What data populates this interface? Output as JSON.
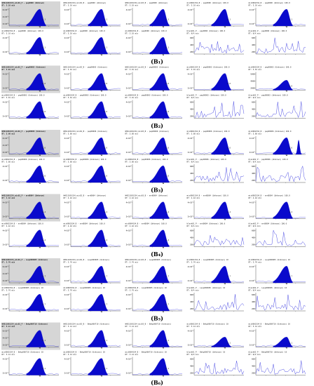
{
  "figure": {
    "groups": [
      {
        "caption": "(B₁)",
        "row1": [
          {
            "l1": "WHS11001334_mis01_P - pep0000 (Unknown)",
            "l2": "RT: 5.10 min",
            "yt": [
              "6×10⁵",
              "4×10⁵",
              "2×10⁵"
            ],
            "peak": "5.1",
            "kind": "peak",
            "gray": true
          },
          {
            "l1": "WHS11001334_mix02_B - pep0000 (Unknown)",
            "l2": "RT: 5.10 min",
            "yt": [
              "4×10⁵",
              "2×10⁵"
            ],
            "peak": "5.1",
            "kind": "peak"
          },
          {
            "l1": "WHS11001334_mix03_B - pep0000 (Unknown)",
            "l2": "RT: 5.10 min",
            "yt": [
              "4×10⁵",
              "2×10⁵"
            ],
            "peak": "5.1",
            "kind": "peak"
          },
          {
            "l1": "mix0001334_B - pep0000 (Unknown) 100.0",
            "l2": "RT: 5.10 min",
            "yt": [
              "4×10⁵",
              "2×10⁵"
            ],
            "peak": "5.1",
            "kind": "peak"
          },
          {
            "l1": "mix0002334_B - pep0000 (Unknown) 100.0",
            "l2": "RT: 5.10 min",
            "yt": [
              "4×10⁵",
              "2×10⁵"
            ],
            "peak": "5.1",
            "kind": "peak"
          }
        ],
        "row2": [
          {
            "l1": "mix0002334_B - pep0000 (Unknown) 100.0",
            "l2": "RT: 5.10 min",
            "yt": [
              "4×10⁵",
              "2×10⁵"
            ],
            "peak": "5.1",
            "kind": "peak"
          },
          {
            "l1": "mix0003334_B - pep0000 (Unknown) 100.0",
            "l2": "RT: 5.10 min",
            "yt": [
              "4×10⁵",
              "2×10⁵"
            ],
            "peak": "5.1",
            "kind": "peak"
          },
          {
            "l1": "mix0004334_B - pep0000 (Unknown) 100.0",
            "l2": "RT: 5.10 min",
            "yt": [
              "4×10⁵",
              "2×10⁵"
            ],
            "peak": "5.1",
            "kind": "peak"
          },
          {
            "l1": "blank01_P - pep0000 (Unknown) 100.0",
            "l2": "RT: N/A min",
            "yt": [
              "600",
              "400",
              "200"
            ],
            "peak": "",
            "kind": "noise"
          },
          {
            "l1": "blank02_P - pep0000 (Unknown) 100.0",
            "l2": "RT: N/A min",
            "yt": [
              "600",
              "400",
              "200"
            ],
            "peak": "",
            "kind": "noise"
          }
        ]
      },
      {
        "caption": "(B₂)",
        "row1": [
          {
            "l1": "WHS11001334_mis01_P - pep00003 (Unknown)",
            "l2": "RT: 5.01 min",
            "yt": [
              "4×10⁵",
              "2×10⁵"
            ],
            "peak": "5.0",
            "kind": "peak",
            "gray": true
          },
          {
            "l1": "WHS11001334_mix02_B - pep00003 (Unknown)",
            "l2": "RT: 5.01 min",
            "yt": [
              "4×10⁵",
              "2×10⁵"
            ],
            "peak": "5.0",
            "kind": "peak"
          },
          {
            "l1": "WHS11001334_mix03_B - pep00003 (Unknown)",
            "l2": "RT: 5.01 min",
            "yt": [
              "4×10⁵",
              "2×10⁵"
            ],
            "peak": "5.0",
            "kind": "peak"
          },
          {
            "l1": "mix0001334_B - pep00003 (Unknown) 100.0",
            "l2": "RT: 5.01 min",
            "yt": [
              "4×10⁵",
              "2×10⁵"
            ],
            "peak": "5.0",
            "kind": "peak"
          },
          {
            "l1": "mix0002334_B - pep00003 (Unknown) 100.0",
            "l2": "RT: 5.01 min",
            "yt": [
              "5000",
              "4000",
              "2000"
            ],
            "peak": "5.0",
            "kind": "bump"
          }
        ],
        "row2": [
          {
            "l1": "mix0002334_B - pep00003 (Unknown) 100.0",
            "l2": "RT: 5.01 min",
            "yt": [
              "4×10⁵",
              "2×10⁵"
            ],
            "peak": "5.0",
            "kind": "peak"
          },
          {
            "l1": "mix0003334_B - pep00003 (Unknown) 100.0",
            "l2": "RT: 5.01 min",
            "yt": [
              "4×10⁵",
              "2×10⁵"
            ],
            "peak": "5.0",
            "kind": "peak"
          },
          {
            "l1": "mix0004334_B - pep00003 (Unknown) 100.0",
            "l2": "RT: 5.01 min",
            "yt": [
              "4×10⁵",
              "2×10⁵"
            ],
            "peak": "5.0",
            "kind": "peak"
          },
          {
            "l1": "blank01_P - pep00003 (Unknown) 100.0",
            "l2": "RT: N/A min",
            "yt": [
              "600",
              "400",
              "200"
            ],
            "peak": "",
            "kind": "noise"
          },
          {
            "l1": "blank02_P - pep00003 (Unknown) 100.0",
            "l2": "RT: N/A min",
            "yt": [
              "600",
              "400",
              "200"
            ],
            "peak": "",
            "kind": "noise"
          }
        ]
      },
      {
        "caption": "(B₃)",
        "row1": [
          {
            "l1": "WHS11001334_mis01_P - pep00006 (Unknown)",
            "l2": "RT: 5.60 min",
            "yt": [
              "6×10⁵",
              "4×10⁵",
              "2×10⁵"
            ],
            "peak": "5.6",
            "kind": "peak",
            "gray": true
          },
          {
            "l1": "WHS11001334_mix02_B - pep00006 (Unknown)",
            "l2": "RT: 5.60 min",
            "yt": [
              "4×10⁵",
              "2×10⁵"
            ],
            "peak": "5.6",
            "kind": "peak"
          },
          {
            "l1": "WHS11001334_mix03_B - pep00006 (Unknown)",
            "l2": "RT: 5.60 min",
            "yt": [
              "4×10⁵",
              "2×10⁵"
            ],
            "peak": "5.6",
            "kind": "peak"
          },
          {
            "l1": "mix0001334_B - pep00006 (Unknown) 100.0",
            "l2": "RT: 5.60 min",
            "yt": [
              "4×10⁵",
              "2×10⁵"
            ],
            "peak": "5.6",
            "kind": "peak"
          },
          {
            "l1": "mix0002334_B - pep00006 (Unknown) 100.0",
            "l2": "RT: 5.60 min",
            "yt": [
              "4×10⁵",
              "2×10⁵"
            ],
            "peak": "5.6",
            "kind": "double"
          }
        ],
        "row2": [
          {
            "l1": "mix0002334_B - pep00006 (Unknown) 100.0",
            "l2": "RT: 5.60 min",
            "yt": [
              "4×10⁵",
              "2×10⁵"
            ],
            "peak": "5.6",
            "kind": "peak"
          },
          {
            "l1": "mix0003334_B - pep00006 (Unknown) 100.0",
            "l2": "RT: 5.60 min",
            "yt": [
              "4×10⁵",
              "2×10⁵"
            ],
            "peak": "5.6",
            "kind": "peak"
          },
          {
            "l1": "mix0004334_B - pep00006 (Unknown) 100.0",
            "l2": "RT: 5.60 min",
            "yt": [
              "4×10⁵",
              "2×10⁵"
            ],
            "peak": "5.6",
            "kind": "peak"
          },
          {
            "l1": "blank01_P - pep00006 (Unknown) 100.0",
            "l2": "RT: N/A min",
            "yt": [
              "600",
              "400",
              "200"
            ],
            "peak": "",
            "kind": "noise"
          },
          {
            "l1": "blank02_P - pep00006 (Unknown) 100.0",
            "l2": "RT: N/A min",
            "yt": [
              "600",
              "400",
              "200"
            ],
            "peak": "",
            "kind": "noise"
          }
        ]
      },
      {
        "caption": "(B₄)",
        "row1": [
          {
            "l1": "WHS11001334_mis01_P - mrd0004 (Unknown)",
            "l2": "RT: 4.42 min",
            "yt": [
              "4×10⁵",
              "2×10⁵"
            ],
            "peak": "4.4",
            "kind": "peak",
            "gray": true
          },
          {
            "l1": "WHS11001334_mix02_B - mrd0004 (Unknown)",
            "l2": "RT: 4.42 min",
            "yt": [
              "4×10⁵",
              "2×10⁵"
            ],
            "peak": "4.4",
            "kind": "peak"
          },
          {
            "l1": "WHS11001334_mix03_B - mrd0004 (Unknown)",
            "l2": "RT: 4.42 min",
            "yt": [
              "4×10⁵",
              "2×10⁵"
            ],
            "peak": "4.4",
            "kind": "peak"
          },
          {
            "l1": "mix0001334_B - mrd0004 (Unknown) 100.0",
            "l2": "RT: 4.42 min",
            "yt": [
              "4×10⁵",
              "2×10⁵"
            ],
            "peak": "4.4",
            "kind": "peak"
          },
          {
            "l1": "mix0002334_B - mrd0004 (Unknown) 100.0",
            "l2": "RT: 4.42 min",
            "yt": [
              "4×10⁵",
              "2×10⁵"
            ],
            "peak": "4.4",
            "kind": "peak"
          }
        ],
        "row2": [
          {
            "l1": "mix0002334_B - mrd0004 (Unknown) 100.0",
            "l2": "RT: 4.42 min",
            "yt": [
              "4×10⁵",
              "2×10⁵"
            ],
            "peak": "4.4",
            "kind": "peak"
          },
          {
            "l1": "mix0003334_B - mrd0004 (Unknown) 100.0",
            "l2": "RT: 4.42 min",
            "yt": [
              "4×10⁵",
              "2×10⁵"
            ],
            "peak": "4.4",
            "kind": "peak"
          },
          {
            "l1": "mix0004334_B - mrd0004 (Unknown) 100.0",
            "l2": "RT: 4.42 min",
            "yt": [
              "4×10⁵",
              "2×10⁵"
            ],
            "peak": "4.4",
            "kind": "peak"
          },
          {
            "l1": "blank01_P - mrd0004 (Unknown) 100.0",
            "l2": "RT: N/A min",
            "yt": [
              "600",
              "400",
              "200"
            ],
            "peak": "",
            "kind": "noise"
          },
          {
            "l1": "blank02_P - mrd0004 (Unknown) 100.0",
            "l2": "RT: N/A min",
            "yt": [
              "600",
              "400",
              "200"
            ],
            "peak": "",
            "kind": "noise"
          }
        ]
      },
      {
        "caption": "(B₅)",
        "row1": [
          {
            "l1": "WHS11001334_mis01_P - Leup000005 (Unknown)",
            "l2": "RT: 5.70 min",
            "yt": [
              "6×10⁵",
              "4×10⁵",
              "2×10⁵"
            ],
            "peak": "5.7",
            "kind": "peak",
            "gray": true
          },
          {
            "l1": "WHS11001334_mix02_B - Leup000005 (Unknown)",
            "l2": "RT: 5.70 min",
            "yt": [
              "4×10⁵",
              "2×10⁵"
            ],
            "peak": "5.7",
            "kind": "peak"
          },
          {
            "l1": "WHS11001334_mix03_B - Leup000005 (Unknown)",
            "l2": "RT: 5.70 min",
            "yt": [
              "4×10⁵",
              "2×10⁵"
            ],
            "peak": "5.7",
            "kind": "peak"
          },
          {
            "l1": "mix0001334_B - Leup000005 (Unknown) 10",
            "l2": "RT: 5.70 min",
            "yt": [
              "4×10⁵",
              "2×10⁵"
            ],
            "peak": "5.7",
            "kind": "peak"
          },
          {
            "l1": "mix0002334_B - Leup000005 (Unknown) 10",
            "l2": "RT: 5.70 min",
            "yt": [
              "4×10⁵",
              "2×10⁵"
            ],
            "peak": "5.7",
            "kind": "peak"
          }
        ],
        "row2": [
          {
            "l1": "mix0002334_B - Leup000005 (Unknown) 10",
            "l2": "RT: 5.70 min",
            "yt": [
              "4×10⁵",
              "2×10⁵"
            ],
            "peak": "5.7",
            "kind": "peak"
          },
          {
            "l1": "mix0003334_B - Leup000005 (Unknown) 10",
            "l2": "RT: 5.70 min",
            "yt": [
              "4×10⁵",
              "2×10⁵"
            ],
            "peak": "5.7",
            "kind": "peak"
          },
          {
            "l1": "mix0004334_B - Leup000005 (Unknown) 10",
            "l2": "RT: 5.70 min",
            "yt": [
              "4×10⁵",
              "2×10⁵"
            ],
            "peak": "5.7",
            "kind": "peak"
          },
          {
            "l1": "blank01_P - Leup000005 (Unknown) 10",
            "l2": "RT: N/A min",
            "yt": [
              "600",
              "400",
              "200"
            ],
            "peak": "",
            "kind": "noise"
          },
          {
            "l1": "blank02_P - Leup000005 (Unknown) 10",
            "l2": "RT: N/A min",
            "yt": [
              "600",
              "400",
              "200"
            ],
            "peak": "",
            "kind": "noise"
          }
        ]
      },
      {
        "caption": "(B₆)",
        "row1": [
          {
            "l1": "WHS11001334_mis01_P - Bekp000710 (Unknown)",
            "l2": "RT: 5.14 min",
            "yt": [
              "6×10⁵",
              "4×10⁵",
              "2×10⁵"
            ],
            "peak": "5.1",
            "kind": "peak",
            "gray": true
          },
          {
            "l1": "WHS11001334_mix02_B - Bekp000710 (Unknown)",
            "l2": "RT: 5.14 min",
            "yt": [
              "4×10⁵",
              "2×10⁵"
            ],
            "peak": "5.1",
            "kind": "peak"
          },
          {
            "l1": "WHS11001334_mix03_B - Bekp000710 (Unknown)",
            "l2": "RT: 5.14 min",
            "yt": [
              "4×10⁵",
              "2×10⁵"
            ],
            "peak": "5.1",
            "kind": "peak"
          },
          {
            "l1": "mix0001334_B - Bekp000710 (Unknown) 10",
            "l2": "RT: 5.14 min",
            "yt": [
              "4×10⁵",
              "2×10⁵"
            ],
            "peak": "5.1",
            "kind": "bump"
          },
          {
            "l1": "mix0002334_B - Bekp000710 (Unknown) 10",
            "l2": "RT: 5.14 min",
            "yt": [
              "4×10⁵",
              "2×10⁵"
            ],
            "peak": "5.1",
            "kind": "bump"
          }
        ],
        "row2": [
          {
            "l1": "mix0002334_B - Bekp000710 (Unknown) 10",
            "l2": "RT: 5.14 min",
            "yt": [
              "4×10⁵",
              "2×10⁵"
            ],
            "peak": "5.1",
            "kind": "peak"
          },
          {
            "l1": "mix0003334_B - Bekp000710 (Unknown) 10",
            "l2": "RT: 5.14 min",
            "yt": [
              "4×10⁵",
              "2×10⁵"
            ],
            "peak": "5.1",
            "kind": "peak"
          },
          {
            "l1": "mix0004334_B - Bekp000710 (Unknown) 10",
            "l2": "RT: 5.14 min",
            "yt": [
              "4×10⁵",
              "2×10⁵"
            ],
            "peak": "5.1",
            "kind": "peak"
          },
          {
            "l1": "blank01_P - Bekp000710 (Unknown) 10",
            "l2": "RT: N/A min",
            "yt": [
              "600",
              "400",
              "200"
            ],
            "peak": "",
            "kind": "noise"
          },
          {
            "l1": "blank02_P - Bekp000710 (Unknown) 10",
            "l2": "RT: N/A min",
            "yt": [
              "600",
              "400",
              "200"
            ],
            "peak": "",
            "kind": "noise"
          }
        ]
      }
    ]
  },
  "colors": {
    "fill": "#0a0acc",
    "trace": "#3a3ae0",
    "gray_bg": "#d6d6d6",
    "axis": "#333333"
  },
  "chart_data": {
    "type": "area",
    "title": "",
    "xlabel": "",
    "ylabel": "",
    "description_series": "60 extracted-ion chromatograms in 6 groups (B1-B6), each group 2 rows x 5 panels; sample panels show a blue filled peak near the retention time, blank panels show baseline noise",
    "retention_times_min": [
      5.1,
      5.01,
      5.6,
      4.42,
      5.7,
      5.14
    ]
  }
}
